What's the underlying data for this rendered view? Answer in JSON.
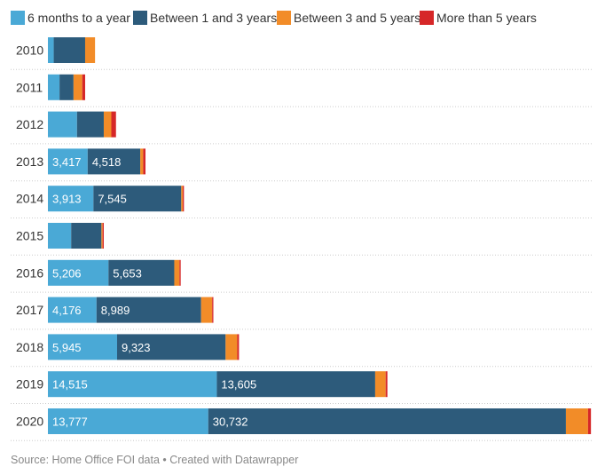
{
  "chart_data": {
    "type": "bar",
    "orientation": "horizontal",
    "stacked": true,
    "categories": [
      "2010",
      "2011",
      "2012",
      "2013",
      "2014",
      "2015",
      "2016",
      "2017",
      "2018",
      "2019",
      "2020"
    ],
    "series": [
      {
        "name": "6 months to a year",
        "color": "#4aa9d6",
        "values": [
          500,
          1000,
          2500,
          3417,
          3913,
          2000,
          5206,
          4176,
          5945,
          14515,
          13777
        ]
      },
      {
        "name": "Between 1 and 3 years",
        "color": "#2d5b7b",
        "values": [
          2700,
          1200,
          2300,
          4518,
          7545,
          2600,
          5653,
          8989,
          9323,
          13605,
          30732
        ]
      },
      {
        "name": "Between 3 and 5 years",
        "color": "#f28c28",
        "values": [
          850,
          750,
          650,
          250,
          130,
          100,
          450,
          950,
          1000,
          900,
          1900
        ]
      },
      {
        "name": "More than 5 years",
        "color": "#d62728",
        "values": [
          0,
          250,
          400,
          200,
          100,
          100,
          100,
          100,
          150,
          150,
          250
        ]
      }
    ],
    "data_labels": {
      "2013": [
        "3,417",
        "4,518"
      ],
      "2014": [
        "3,913",
        "7,545"
      ],
      "2016": [
        "5,206",
        "5,653"
      ],
      "2017": [
        "4,176",
        "8,989"
      ],
      "2018": [
        "5,945",
        "9,323"
      ],
      "2019": [
        "14,515",
        "13,605"
      ],
      "2020": [
        "13,777",
        "30,732"
      ]
    },
    "xlim": [
      0,
      46800
    ],
    "grid": "horizontal-dotted-separators",
    "legend": "top-left",
    "source": "Source: Home Office FOI data • Created with Datawrapper"
  }
}
